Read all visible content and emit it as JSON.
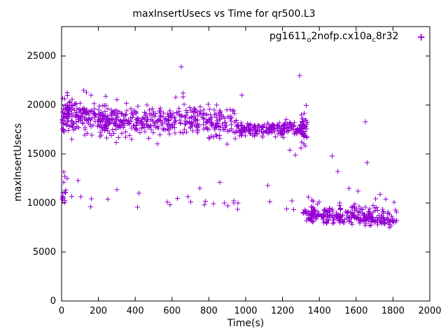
{
  "colors": {
    "marker": "#9400d3",
    "axis": "#000000",
    "background": "#ffffff"
  },
  "legend": {
    "label_plain": "pg1611o2nofp.cx10ac8r32",
    "label_parts": [
      {
        "text": "pg1611"
      },
      {
        "text": "o",
        "sub": true
      },
      {
        "text": "2nofp.cx10a"
      },
      {
        "text": "c",
        "sub": true
      },
      {
        "text": "8r32"
      }
    ],
    "marker_symbol": "+"
  },
  "chart_data": {
    "type": "scatter",
    "title": "maxInsertUsecs vs Time for qr500.L3",
    "xlabel": "Time(s)",
    "ylabel": "maxInsertUsecs",
    "xlim": [
      0,
      2000
    ],
    "ylim": [
      0,
      28000
    ],
    "xticks": [
      0,
      200,
      400,
      600,
      800,
      1000,
      1200,
      1400,
      1600,
      1800,
      2000
    ],
    "yticks": [
      0,
      5000,
      10000,
      15000,
      20000,
      25000
    ],
    "grid": false,
    "legend_position": "top-right-inside",
    "marker": "plus",
    "series_name": "pg1611_o2nofp.cx10a_c8r32",
    "clusters": [
      {
        "x0": 0,
        "x1": 60,
        "y0": 18900,
        "y1": 19200,
        "sd": 900,
        "n": 70
      },
      {
        "x0": 60,
        "x1": 300,
        "y0": 18900,
        "y1": 18300,
        "sd": 800,
        "n": 180
      },
      {
        "x0": 300,
        "x1": 650,
        "y0": 18300,
        "y1": 18400,
        "sd": 750,
        "n": 200
      },
      {
        "x0": 650,
        "x1": 950,
        "y0": 18600,
        "y1": 18000,
        "sd": 800,
        "n": 160
      },
      {
        "x0": 950,
        "x1": 1310,
        "y0": 17500,
        "y1": 17600,
        "sd": 350,
        "n": 200
      },
      {
        "x0": 0,
        "x1": 1300,
        "y0": 10300,
        "y1": 10100,
        "sd": 380,
        "n": 26
      },
      {
        "x0": 0,
        "x1": 25,
        "y0": 11000,
        "y1": 11000,
        "sd": 900,
        "n": 12
      },
      {
        "x0": 1300,
        "x1": 1335,
        "y0": 18000,
        "y1": 17400,
        "sd": 900,
        "n": 40
      },
      {
        "x0": 1310,
        "x1": 1820,
        "y0": 8900,
        "y1": 8300,
        "sd": 380,
        "n": 280
      },
      {
        "x0": 1335,
        "x1": 1820,
        "y0": 9800,
        "y1": 9300,
        "sd": 550,
        "n": 28
      }
    ],
    "outliers": [
      [
        650,
        23900
      ],
      [
        1292,
        23000
      ],
      [
        120,
        21500
      ],
      [
        135,
        21300
      ],
      [
        660,
        21200
      ],
      [
        980,
        21000
      ],
      [
        30,
        12500
      ],
      [
        18,
        12700
      ],
      [
        90,
        12300
      ],
      [
        1650,
        18300
      ],
      [
        1660,
        14100
      ],
      [
        1470,
        14800
      ],
      [
        1500,
        13200
      ],
      [
        1560,
        11500
      ],
      [
        1610,
        11200
      ],
      [
        380,
        16500
      ],
      [
        900,
        16000
      ],
      [
        1240,
        15400
      ],
      [
        1270,
        14900
      ],
      [
        860,
        12100
      ],
      [
        1120,
        11800
      ],
      [
        750,
        11500
      ],
      [
        420,
        11000
      ],
      [
        1730,
        10900
      ],
      [
        1760,
        10400
      ],
      [
        55,
        16500
      ],
      [
        210,
        16800
      ],
      [
        1340,
        10600
      ],
      [
        1360,
        10300
      ],
      [
        1390,
        9900
      ],
      [
        1300,
        15600
      ],
      [
        1305,
        16200
      ],
      [
        620,
        20800
      ],
      [
        240,
        20900
      ],
      [
        160,
        21000
      ]
    ]
  }
}
